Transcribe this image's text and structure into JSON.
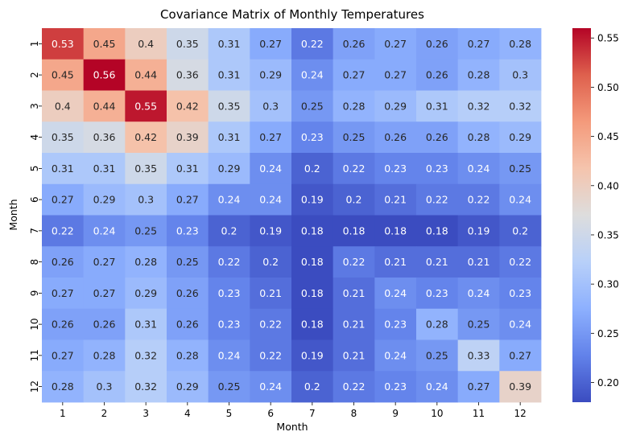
{
  "chart_data": {
    "type": "heatmap",
    "title": "Covariance Matrix of Monthly Temperatures",
    "xlabel": "Month",
    "ylabel": "Month",
    "x_categories": [
      "1",
      "2",
      "3",
      "4",
      "5",
      "6",
      "7",
      "8",
      "9",
      "10",
      "11",
      "12"
    ],
    "y_categories": [
      "1",
      "2",
      "3",
      "4",
      "5",
      "6",
      "7",
      "8",
      "9",
      "10",
      "11",
      "12"
    ],
    "values": [
      [
        0.53,
        0.45,
        0.4,
        0.35,
        0.31,
        0.27,
        0.22,
        0.26,
        0.27,
        0.26,
        0.27,
        0.28
      ],
      [
        0.45,
        0.56,
        0.44,
        0.36,
        0.31,
        0.29,
        0.24,
        0.27,
        0.27,
        0.26,
        0.28,
        0.3
      ],
      [
        0.4,
        0.44,
        0.55,
        0.42,
        0.35,
        0.3,
        0.25,
        0.28,
        0.29,
        0.31,
        0.32,
        0.32
      ],
      [
        0.35,
        0.36,
        0.42,
        0.39,
        0.31,
        0.27,
        0.23,
        0.25,
        0.26,
        0.26,
        0.28,
        0.29
      ],
      [
        0.31,
        0.31,
        0.35,
        0.31,
        0.29,
        0.24,
        0.2,
        0.22,
        0.23,
        0.23,
        0.24,
        0.25
      ],
      [
        0.27,
        0.29,
        0.3,
        0.27,
        0.24,
        0.24,
        0.19,
        0.2,
        0.21,
        0.22,
        0.22,
        0.24
      ],
      [
        0.22,
        0.24,
        0.25,
        0.23,
        0.2,
        0.19,
        0.18,
        0.18,
        0.18,
        0.18,
        0.19,
        0.2
      ],
      [
        0.26,
        0.27,
        0.28,
        0.25,
        0.22,
        0.2,
        0.18,
        0.22,
        0.21,
        0.21,
        0.21,
        0.22
      ],
      [
        0.27,
        0.27,
        0.29,
        0.26,
        0.23,
        0.21,
        0.18,
        0.21,
        0.24,
        0.23,
        0.24,
        0.23
      ],
      [
        0.26,
        0.26,
        0.31,
        0.26,
        0.23,
        0.22,
        0.18,
        0.21,
        0.23,
        0.28,
        0.25,
        0.24
      ],
      [
        0.27,
        0.28,
        0.32,
        0.28,
        0.24,
        0.22,
        0.19,
        0.21,
        0.24,
        0.25,
        0.33,
        0.27
      ],
      [
        0.28,
        0.3,
        0.32,
        0.29,
        0.25,
        0.24,
        0.2,
        0.22,
        0.23,
        0.24,
        0.27,
        0.39
      ]
    ],
    "colormap": "coolwarm",
    "vmin": 0.18,
    "vmax": 0.56,
    "colorbar_ticks": [
      "0.20",
      "0.25",
      "0.30",
      "0.35",
      "0.40",
      "0.45",
      "0.50",
      "0.55"
    ],
    "annotations": true,
    "grid": false,
    "legend": "colorbar-right"
  }
}
